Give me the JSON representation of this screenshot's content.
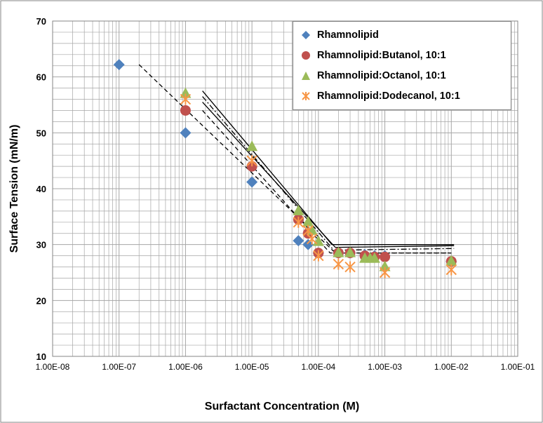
{
  "chart_data": {
    "type": "scatter",
    "xscale": "log",
    "xlim": [
      1e-08,
      0.1
    ],
    "ylim": [
      10,
      70
    ],
    "xlabel": "Surfactant Concentration (M)",
    "ylabel": "Surface Tension (mN/m)",
    "x_tick_labels": [
      "1.00E-08",
      "1.00E-07",
      "1.00E-06",
      "1.00E-05",
      "1.00E-04",
      "1.00E-03",
      "1.00E-02",
      "1.00E-01"
    ],
    "y_ticks": [
      10,
      20,
      30,
      40,
      50,
      60,
      70
    ],
    "y_tick_labels": [
      "10",
      "20",
      "30",
      "40",
      "50",
      "60",
      "70"
    ],
    "grid": true,
    "legend_position": "top-right",
    "series": [
      {
        "name": "Rhamnolipid",
        "marker": "diamond",
        "color": "#4f81bd",
        "x": [
          1e-07,
          1e-06,
          1e-05,
          5e-05,
          7e-05,
          0.0001,
          0.0002,
          0.0003,
          0.0005,
          0.0007,
          0.001,
          0.01
        ],
        "y": [
          62.2,
          50.0,
          41.2,
          30.7,
          30.0,
          28.5,
          28.5,
          28.5,
          28.2,
          28.0,
          28.0,
          27.0
        ]
      },
      {
        "name": "Rhamnolipid:Butanol, 10:1",
        "marker": "circle",
        "color": "#c0504d",
        "x": [
          1e-06,
          1e-05,
          5e-05,
          7e-05,
          0.0001,
          0.0002,
          0.0003,
          0.0005,
          0.0007,
          0.001,
          0.01
        ],
        "y": [
          54.0,
          44.0,
          34.5,
          32.0,
          28.5,
          28.5,
          28.5,
          28.0,
          27.8,
          27.8,
          27.0
        ]
      },
      {
        "name": "Rhamnolipid:Octanol, 10:1",
        "marker": "triangle",
        "color": "#9bbb59",
        "x": [
          1e-06,
          1e-05,
          5e-05,
          7e-05,
          8e-05,
          0.0001,
          0.0002,
          0.0003,
          0.0005,
          0.0006,
          0.0007,
          0.001,
          0.01
        ],
        "y": [
          57.0,
          47.5,
          36.0,
          34.0,
          32.5,
          30.5,
          28.5,
          28.5,
          27.5,
          27.5,
          27.5,
          26.0,
          27.0
        ]
      },
      {
        "name": "Rhamnolipid:Dodecanol, 10:1",
        "marker": "asterisk",
        "color": "#f79646",
        "x": [
          1e-06,
          1e-05,
          5e-05,
          7e-05,
          8e-05,
          0.0001,
          0.0002,
          0.0003,
          0.001,
          0.01
        ],
        "y": [
          56.0,
          45.0,
          34.0,
          32.5,
          31.0,
          28.0,
          26.5,
          26.0,
          25.0,
          25.5
        ]
      }
    ],
    "trendlines": [
      {
        "style": "dashed",
        "x": [
          2e-07,
          0.00018,
          0.01
        ],
        "y": [
          62.2,
          28.5,
          28.5
        ]
      },
      {
        "style": "dashed",
        "x": [
          1.8e-06,
          0.00015,
          0.01
        ],
        "y": [
          54.0,
          28.5,
          28.5
        ]
      },
      {
        "style": "solid",
        "x": [
          1.8e-06,
          0.00016,
          0.011
        ],
        "y": [
          57.5,
          30.0,
          30.0
        ]
      },
      {
        "style": "solid",
        "x": [
          1.8e-06,
          0.00018,
          0.011
        ],
        "y": [
          55.5,
          29.5,
          29.8
        ]
      },
      {
        "style": "dashdot",
        "x": [
          1.8e-06,
          0.00017,
          0.011
        ],
        "y": [
          56.5,
          29.0,
          29.3
        ]
      }
    ]
  }
}
